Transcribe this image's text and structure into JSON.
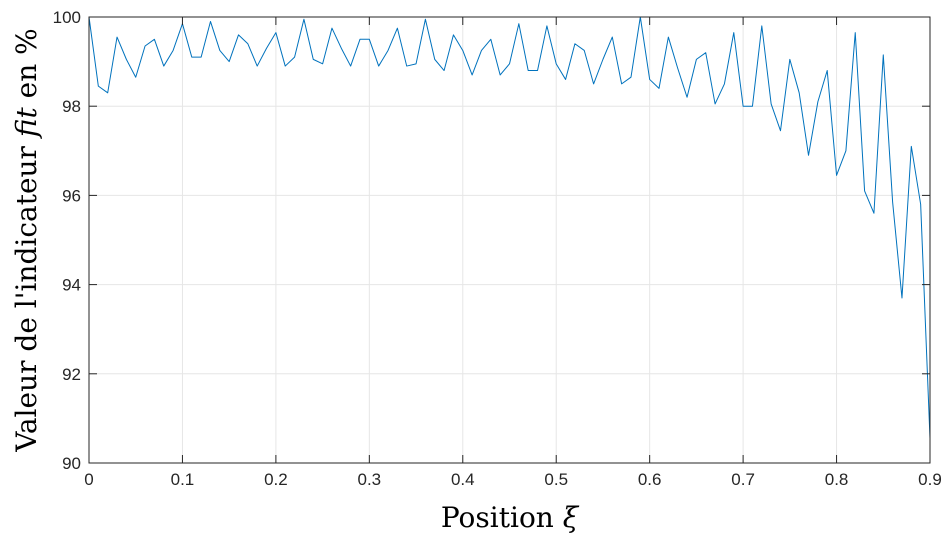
{
  "chart_data": {
    "type": "line",
    "xlabel": {
      "pre": "Position ",
      "math": "ξ"
    },
    "ylabel": {
      "pre": "Valeur de l'indicateur ",
      "math": "fit",
      "post": " en %"
    },
    "xlim": [
      0,
      0.9
    ],
    "ylim": [
      90,
      100
    ],
    "xticks": [
      0,
      0.1,
      0.2,
      0.3,
      0.4,
      0.5,
      0.6,
      0.7,
      0.8,
      0.9
    ],
    "xtick_labels": [
      "0",
      "0.1",
      "0.2",
      "0.3",
      "0.4",
      "0.5",
      "0.6",
      "0.7",
      "0.8",
      "0.9"
    ],
    "yticks": [
      90,
      92,
      94,
      96,
      98,
      100
    ],
    "ytick_labels": [
      "90",
      "92",
      "94",
      "96",
      "98",
      "100"
    ],
    "grid": true,
    "series": [
      {
        "color": "#0072BD",
        "x": [
          0,
          0.01,
          0.02,
          0.03,
          0.04,
          0.05,
          0.06,
          0.07,
          0.08,
          0.09,
          0.1,
          0.11,
          0.12,
          0.13,
          0.14,
          0.15,
          0.16,
          0.17,
          0.18,
          0.19,
          0.2,
          0.21,
          0.22,
          0.23,
          0.24,
          0.25,
          0.26,
          0.27,
          0.28,
          0.29,
          0.3,
          0.31,
          0.32,
          0.33,
          0.34,
          0.35,
          0.36,
          0.37,
          0.38,
          0.39,
          0.4,
          0.41,
          0.42,
          0.43,
          0.44,
          0.45,
          0.46,
          0.47,
          0.48,
          0.49,
          0.5,
          0.51,
          0.52,
          0.53,
          0.54,
          0.55,
          0.56,
          0.57,
          0.58,
          0.59,
          0.6,
          0.61,
          0.62,
          0.63,
          0.64,
          0.65,
          0.66,
          0.67,
          0.68,
          0.69,
          0.7,
          0.71,
          0.72,
          0.73,
          0.74,
          0.75,
          0.76,
          0.77,
          0.78,
          0.79,
          0.8,
          0.81,
          0.82,
          0.83,
          0.84,
          0.85,
          0.86,
          0.87,
          0.88,
          0.89,
          0.9
        ],
        "y": [
          100,
          98.45,
          98.3,
          99.55,
          99.05,
          98.65,
          99.35,
          99.5,
          98.9,
          99.25,
          99.85,
          99.1,
          99.1,
          99.9,
          99.25,
          99.0,
          99.6,
          99.4,
          98.9,
          99.3,
          99.65,
          98.9,
          99.1,
          99.95,
          99.05,
          98.95,
          99.75,
          99.3,
          98.9,
          99.5,
          99.5,
          98.9,
          99.25,
          99.75,
          98.9,
          98.95,
          99.95,
          99.05,
          98.8,
          99.6,
          99.25,
          98.7,
          99.25,
          99.5,
          98.7,
          98.95,
          99.85,
          98.8,
          98.8,
          99.8,
          98.95,
          98.6,
          99.4,
          99.25,
          98.5,
          99.05,
          99.55,
          98.5,
          98.65,
          100,
          98.6,
          98.4,
          99.55,
          98.85,
          98.2,
          99.05,
          99.2,
          98.05,
          98.5,
          99.65,
          98.0,
          98.0,
          99.8,
          98.05,
          97.45,
          99.05,
          98.3,
          96.9,
          98.1,
          98.8,
          96.45,
          97.0,
          99.65,
          96.1,
          95.6,
          99.15,
          95.85,
          93.7,
          97.1,
          95.8,
          90.55
        ]
      }
    ]
  }
}
